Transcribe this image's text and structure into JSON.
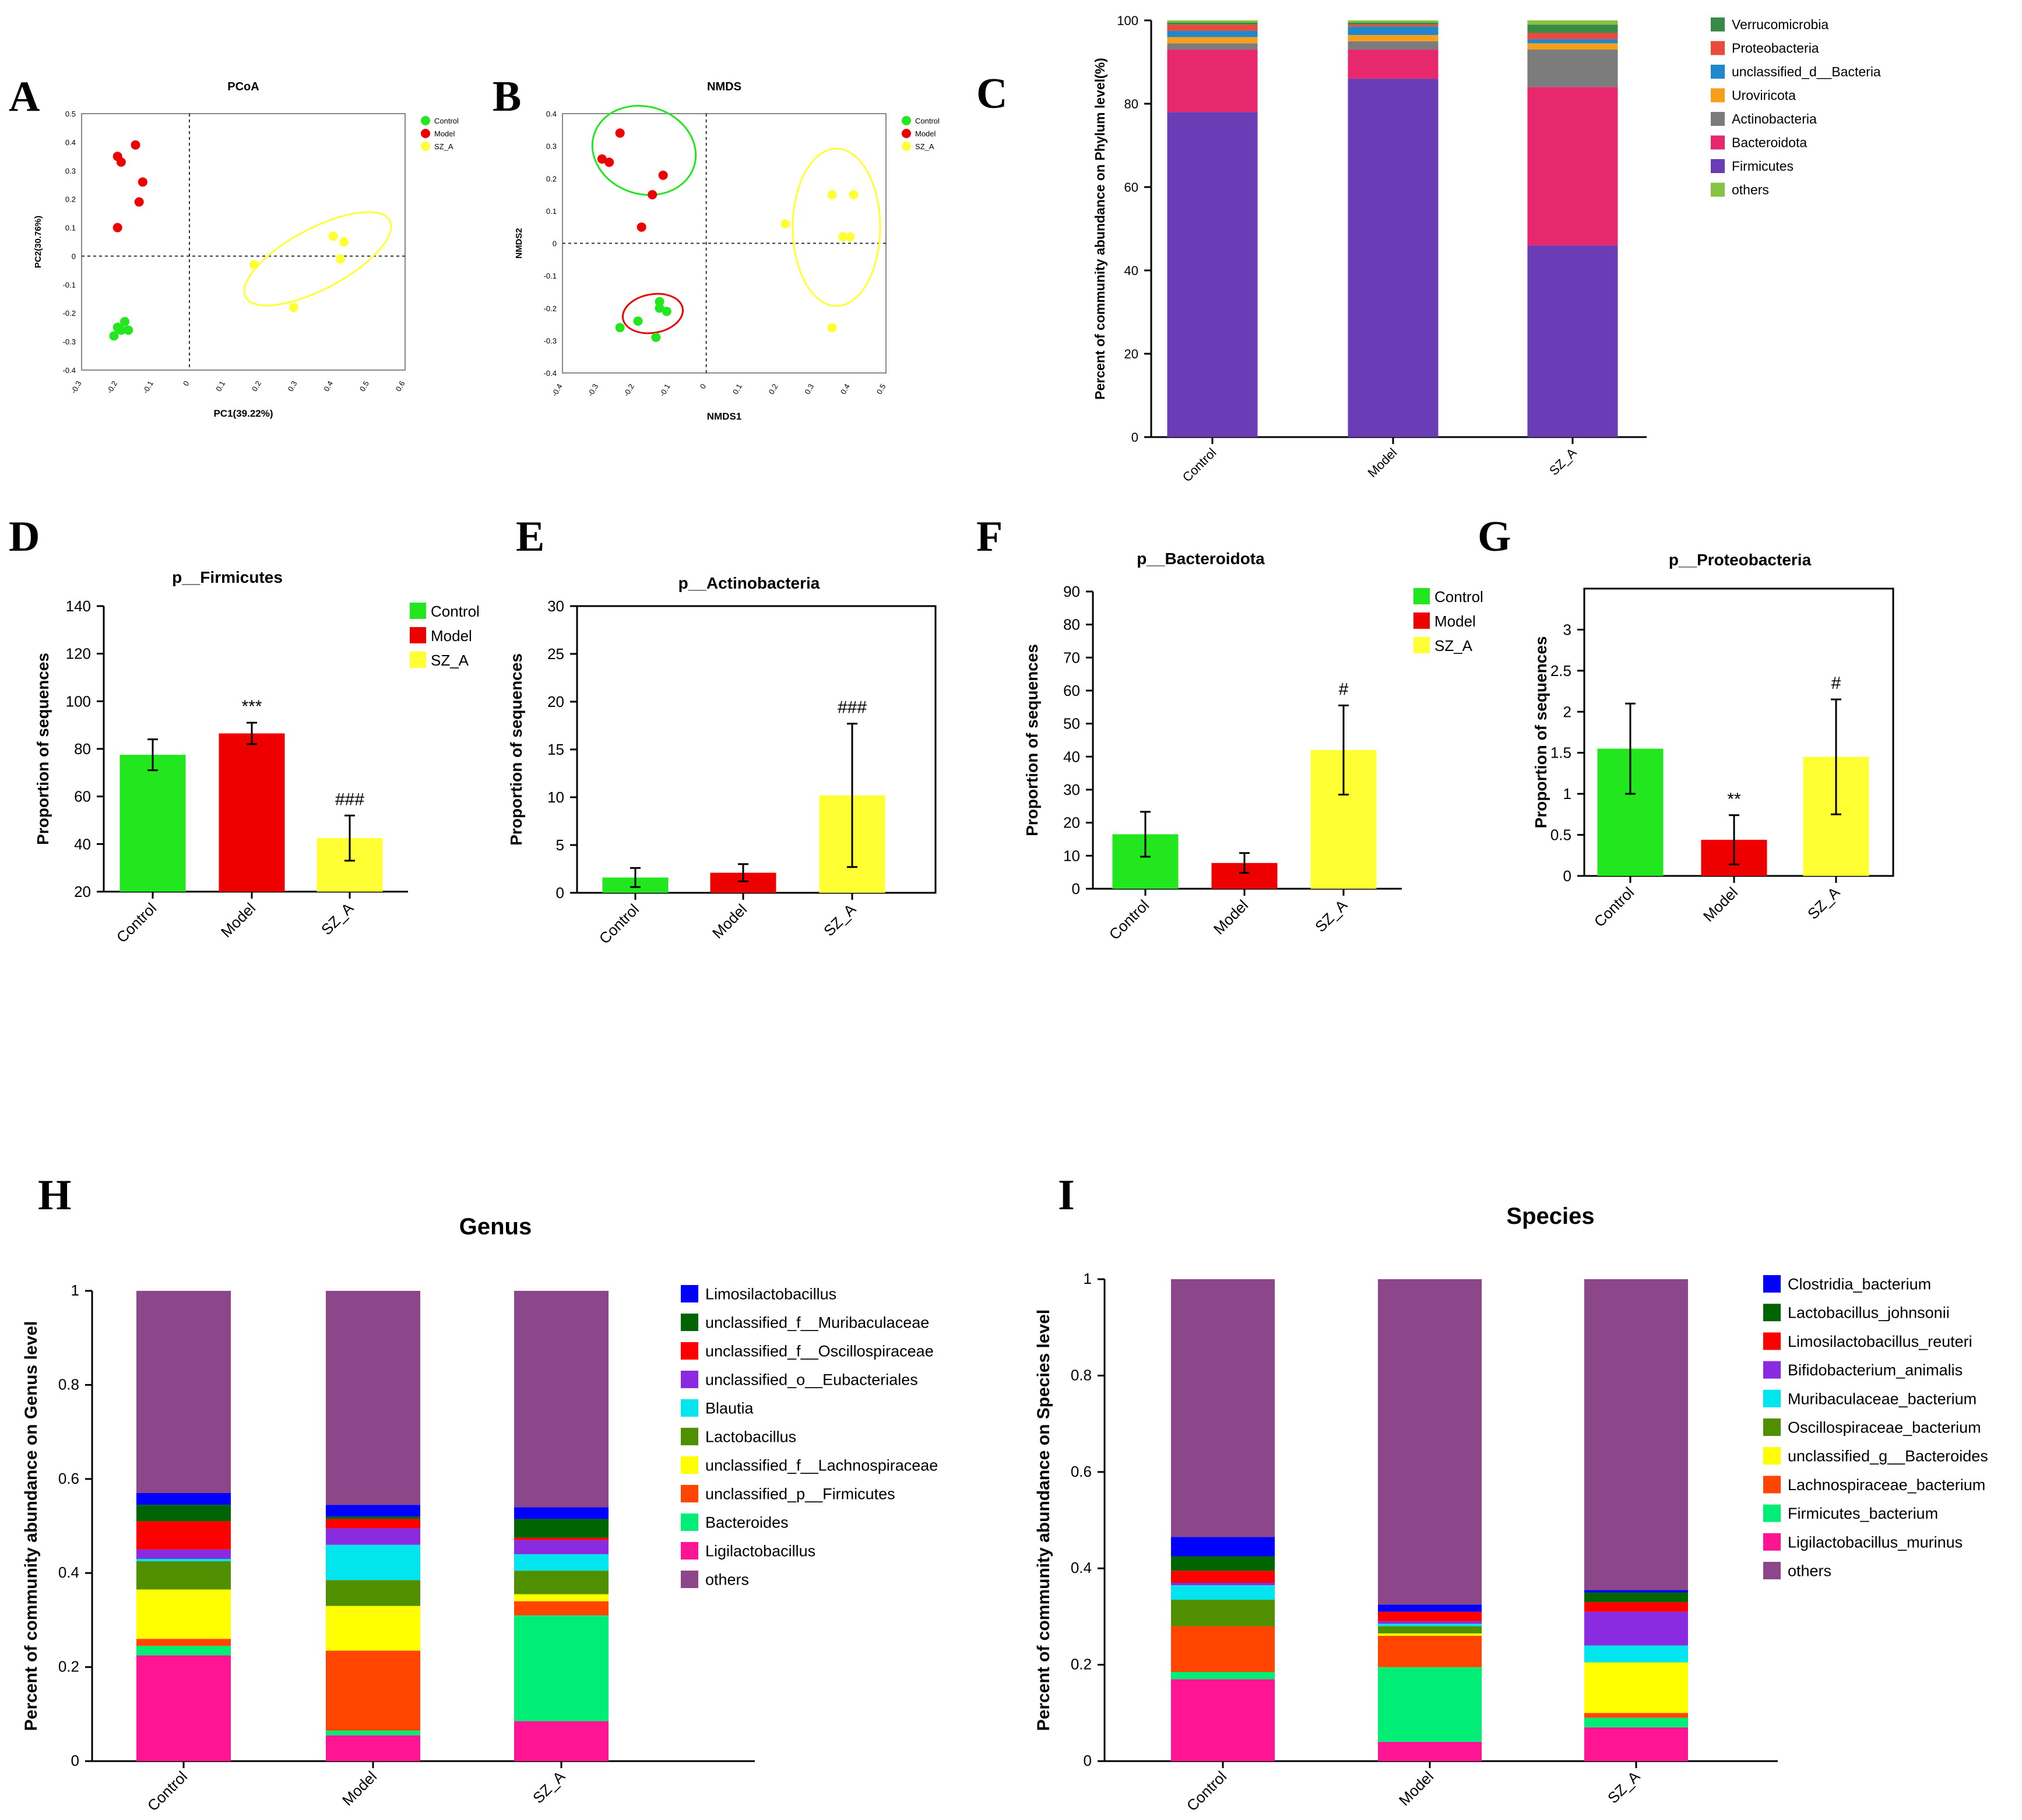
{
  "figure": {
    "panel_letters": [
      "A",
      "B",
      "C",
      "D",
      "E",
      "F",
      "G",
      "H",
      "I"
    ]
  },
  "colors": {
    "control": "#22e61e",
    "model": "#ee0000",
    "sz_a": "#ffff33"
  },
  "chart_data": [
    {
      "id": "A",
      "type": "scatter",
      "title": "PCoA",
      "xlabel": "PC1(39.22%)",
      "ylabel": "PC2(30.76%)",
      "xlim": [
        -0.3,
        0.6
      ],
      "ylim": [
        -0.4,
        0.5
      ],
      "xticks": [
        "-0.3",
        "-0.2",
        "-0.1",
        "0",
        "0.1",
        "0.2",
        "0.3",
        "0.4",
        "0.5",
        "0.6"
      ],
      "yticks": [
        "-0.4",
        "-0.3",
        "-0.2",
        "-0.1",
        "0",
        "0.1",
        "0.2",
        "0.3",
        "0.4",
        "0.5"
      ],
      "legend": [
        "Control",
        "Model",
        "SZ_A"
      ],
      "series": [
        {
          "name": "Control",
          "points": [
            [
              -0.21,
              -0.28
            ],
            [
              -0.19,
              -0.26
            ],
            [
              -0.18,
              -0.23
            ],
            [
              -0.17,
              -0.26
            ],
            [
              -0.2,
              -0.25
            ]
          ]
        },
        {
          "name": "Model",
          "points": [
            [
              -0.2,
              0.35
            ],
            [
              -0.19,
              0.33
            ],
            [
              -0.15,
              0.39
            ],
            [
              -0.13,
              0.26
            ],
            [
              -0.14,
              0.19
            ],
            [
              -0.2,
              0.1
            ]
          ]
        },
        {
          "name": "SZ_A",
          "points": [
            [
              0.18,
              -0.03
            ],
            [
              0.29,
              -0.18
            ],
            [
              0.4,
              0.07
            ],
            [
              0.43,
              0.05
            ],
            [
              0.42,
              -0.01
            ]
          ]
        }
      ]
    },
    {
      "id": "B",
      "type": "scatter",
      "title": "NMDS",
      "xlabel": "NMDS1",
      "ylabel": "NMDS2",
      "xlim": [
        -0.4,
        0.5
      ],
      "ylim": [
        -0.4,
        0.4
      ],
      "xticks": [
        "-0.4",
        "-0.3",
        "-0.2",
        "-0.1",
        "0",
        "0.1",
        "0.2",
        "0.3",
        "0.4",
        "0.5"
      ],
      "yticks": [
        "-0.4",
        "-0.3",
        "-0.2",
        "-0.1",
        "0",
        "0.1",
        "0.2",
        "0.3",
        "0.4"
      ],
      "legend": [
        "Control",
        "Model",
        "SZ_A"
      ],
      "series": [
        {
          "name": "Control",
          "points": [
            [
              -0.24,
              -0.26
            ],
            [
              -0.19,
              -0.24
            ],
            [
              -0.13,
              -0.2
            ],
            [
              -0.11,
              -0.21
            ],
            [
              -0.13,
              -0.18
            ],
            [
              -0.14,
              -0.29
            ]
          ]
        },
        {
          "name": "Model",
          "points": [
            [
              -0.29,
              0.26
            ],
            [
              -0.27,
              0.25
            ],
            [
              -0.24,
              0.34
            ],
            [
              -0.12,
              0.21
            ],
            [
              -0.15,
              0.15
            ],
            [
              -0.18,
              0.05
            ]
          ]
        },
        {
          "name": "SZ_A",
          "points": [
            [
              0.22,
              0.06
            ],
            [
              0.35,
              0.15
            ],
            [
              0.41,
              0.15
            ],
            [
              0.38,
              0.02
            ],
            [
              0.4,
              0.02
            ],
            [
              0.35,
              -0.26
            ]
          ]
        }
      ]
    },
    {
      "id": "C",
      "type": "bar",
      "stacked": true,
      "ylabel": "Percent of community abundance on Phylum level(%)",
      "categories": [
        "Control",
        "Model",
        "SZ_A"
      ],
      "ylim": [
        0,
        100
      ],
      "yticks": [
        "0",
        "20",
        "40",
        "60",
        "80",
        "100"
      ],
      "series": [
        {
          "name": "Firmicutes",
          "color": "#6a3db6",
          "values": [
            78,
            86,
            46
          ]
        },
        {
          "name": "Bacteroidota",
          "color": "#e8286c",
          "values": [
            15,
            7,
            38
          ]
        },
        {
          "name": "Actinobacteria",
          "color": "#7c7c7c",
          "values": [
            1.5,
            2,
            9
          ]
        },
        {
          "name": "Uroviricota",
          "color": "#f79e1b",
          "values": [
            1.5,
            1.5,
            1.5
          ]
        },
        {
          "name": "unclassified_d__Bacteria",
          "color": "#1f88cc",
          "values": [
            1.5,
            2,
            1
          ]
        },
        {
          "name": "Proteobacteria",
          "color": "#ea4a3b",
          "values": [
            1.5,
            0.5,
            1.5
          ]
        },
        {
          "name": "Verrucomicrobia",
          "color": "#3a8a47",
          "values": [
            0.5,
            0.5,
            2
          ]
        },
        {
          "name": "others",
          "color": "#86c342",
          "values": [
            0.5,
            0.5,
            1
          ]
        }
      ],
      "legend_order": [
        "Verrucomicrobia",
        "Proteobacteria",
        "unclassified_d__Bacteria",
        "Uroviricota",
        "Actinobacteria",
        "Bacteroidota",
        "Firmicutes",
        "others"
      ]
    },
    {
      "id": "D",
      "type": "bar",
      "title": "p__Firmicutes",
      "ylabel": "Proportion of sequences",
      "categories": [
        "Control",
        "Model",
        "SZ_A"
      ],
      "values": [
        77.5,
        86.5,
        42.5
      ],
      "errors": [
        6.5,
        4.5,
        9.5
      ],
      "annotations": [
        "",
        "***",
        "###"
      ],
      "ylim": [
        20,
        140
      ],
      "yticks": [
        "20",
        "40",
        "60",
        "80",
        "100",
        "120",
        "140"
      ],
      "legend": [
        "Control",
        "Model",
        "SZ_A"
      ]
    },
    {
      "id": "E",
      "type": "bar",
      "title": "p__Actinobacteria",
      "ylabel": "Proportion of sequences",
      "categories": [
        "Control",
        "Model",
        "SZ_A"
      ],
      "values": [
        1.6,
        2.1,
        10.2
      ],
      "errors": [
        1.0,
        0.9,
        7.5
      ],
      "annotations": [
        "",
        "",
        "###"
      ],
      "ylim": [
        0,
        30
      ],
      "yticks": [
        "0",
        "5",
        "10",
        "15",
        "20",
        "25",
        "30"
      ]
    },
    {
      "id": "F",
      "type": "bar",
      "title": "p__Bacteroidota",
      "ylabel": "Proportion of sequences",
      "categories": [
        "Control",
        "Model",
        "SZ_A"
      ],
      "values": [
        16.5,
        7.8,
        42
      ],
      "errors": [
        6.8,
        3,
        13.5
      ],
      "annotations": [
        "",
        "",
        "#"
      ],
      "ylim": [
        0,
        90
      ],
      "yticks": [
        "0",
        "10",
        "20",
        "30",
        "40",
        "50",
        "60",
        "70",
        "80",
        "90"
      ],
      "legend": [
        "Control",
        "Model",
        "SZ_A"
      ]
    },
    {
      "id": "G",
      "type": "bar",
      "title": "p__Proteobacteria",
      "ylabel": "Proportion of sequences",
      "categories": [
        "Control",
        "Model",
        "SZ_A"
      ],
      "values": [
        1.55,
        0.44,
        1.45
      ],
      "errors": [
        0.55,
        0.3,
        0.7
      ],
      "annotations": [
        "",
        "**",
        "#"
      ],
      "ylim": [
        0,
        3.5
      ],
      "yticks": [
        "0",
        "0.5",
        "1",
        "1.5",
        "2",
        "2.5",
        "3"
      ]
    },
    {
      "id": "H",
      "type": "bar",
      "stacked": true,
      "title": "Genus",
      "ylabel": "Percent of community abundance on Genus level",
      "categories": [
        "Control",
        "Model",
        "SZ_A"
      ],
      "ylim": [
        0,
        1
      ],
      "yticks": [
        "0",
        "0.2",
        "0.4",
        "0.6",
        "0.8",
        "1"
      ],
      "series": [
        {
          "name": "Ligilactobacillus",
          "color": "#ff1493",
          "values": [
            0.225,
            0.055,
            0.085
          ]
        },
        {
          "name": "Bacteroides",
          "color": "#00ee76",
          "values": [
            0.02,
            0.01,
            0.225
          ]
        },
        {
          "name": "unclassified_p__Firmicutes",
          "color": "#ff4500",
          "values": [
            0.015,
            0.17,
            0.03
          ]
        },
        {
          "name": "unclassified_f__Lachnospiraceae",
          "color": "#ffff00",
          "values": [
            0.105,
            0.095,
            0.015
          ]
        },
        {
          "name": "Lactobacillus",
          "color": "#4f8f00",
          "values": [
            0.06,
            0.055,
            0.05
          ]
        },
        {
          "name": "Blautia",
          "color": "#00e5ee",
          "values": [
            0.005,
            0.075,
            0.035
          ]
        },
        {
          "name": "unclassified_o__Eubacteriales",
          "color": "#8a2be2",
          "values": [
            0.02,
            0.035,
            0.03
          ]
        },
        {
          "name": "unclassified_f__Oscillospiraceae",
          "color": "#ff0000",
          "values": [
            0.06,
            0.02,
            0.005
          ]
        },
        {
          "name": "unclassified_f__Muribaculaceae",
          "color": "#006400",
          "values": [
            0.035,
            0.005,
            0.04
          ]
        },
        {
          "name": "Limosilactobacillus",
          "color": "#0000ff",
          "values": [
            0.025,
            0.025,
            0.025
          ]
        },
        {
          "name": "others",
          "color": "#8b4789",
          "values": [
            0.43,
            0.455,
            0.46
          ]
        }
      ],
      "legend_order": [
        "Limosilactobacillus",
        "unclassified_f__Muribaculaceae",
        "unclassified_f__Oscillospiraceae",
        "unclassified_o__Eubacteriales",
        "Blautia",
        "Lactobacillus",
        "unclassified_f__Lachnospiraceae",
        "unclassified_p__Firmicutes",
        "Bacteroides",
        "Ligilactobacillus",
        "others"
      ]
    },
    {
      "id": "I",
      "type": "bar",
      "stacked": true,
      "title": "Species",
      "ylabel": "Percent of community abundance on Species level",
      "categories": [
        "Control",
        "Model",
        "SZ_A"
      ],
      "ylim": [
        0,
        1
      ],
      "yticks": [
        "0",
        "0.2",
        "0.4",
        "0.6",
        "0.8",
        "1"
      ],
      "series": [
        {
          "name": "Ligilactobacillus_murinus",
          "color": "#ff1493",
          "values": [
            0.17,
            0.04,
            0.07
          ]
        },
        {
          "name": "Firmicutes_bacterium",
          "color": "#00ee76",
          "values": [
            0.015,
            0.155,
            0.02
          ]
        },
        {
          "name": "Lachnospiraceae_bacterium",
          "color": "#ff4500",
          "values": [
            0.095,
            0.065,
            0.01
          ]
        },
        {
          "name": "unclassified_g__Bacteroides",
          "color": "#ffff00",
          "values": [
            0.0,
            0.005,
            0.105
          ]
        },
        {
          "name": "Oscillospiraceae_bacterium",
          "color": "#4f8f00",
          "values": [
            0.055,
            0.015,
            0.0
          ]
        },
        {
          "name": "Muribaculaceae_bacterium",
          "color": "#00e5ee",
          "values": [
            0.03,
            0.005,
            0.035
          ]
        },
        {
          "name": "Bifidobacterium_animalis",
          "color": "#8a2be2",
          "values": [
            0.005,
            0.005,
            0.07
          ]
        },
        {
          "name": "Limosilactobacillus_reuteri",
          "color": "#ff0000",
          "values": [
            0.025,
            0.02,
            0.02
          ]
        },
        {
          "name": "Lactobacillus_johnsonii",
          "color": "#006400",
          "values": [
            0.03,
            0.0,
            0.02
          ]
        },
        {
          "name": "Clostridia_bacterium",
          "color": "#0000ff",
          "values": [
            0.04,
            0.015,
            0.005
          ]
        },
        {
          "name": "others",
          "color": "#8b4789",
          "values": [
            0.535,
            0.675,
            0.645
          ]
        }
      ],
      "legend_order": [
        "Clostridia_bacterium",
        "Lactobacillus_johnsonii",
        "Limosilactobacillus_reuteri",
        "Bifidobacterium_animalis",
        "Muribaculaceae_bacterium",
        "Oscillospiraceae_bacterium",
        "unclassified_g__Bacteroides",
        "Lachnospiraceae_bacterium",
        "Firmicutes_bacterium",
        "Ligilactobacillus_murinus",
        "others"
      ]
    }
  ]
}
